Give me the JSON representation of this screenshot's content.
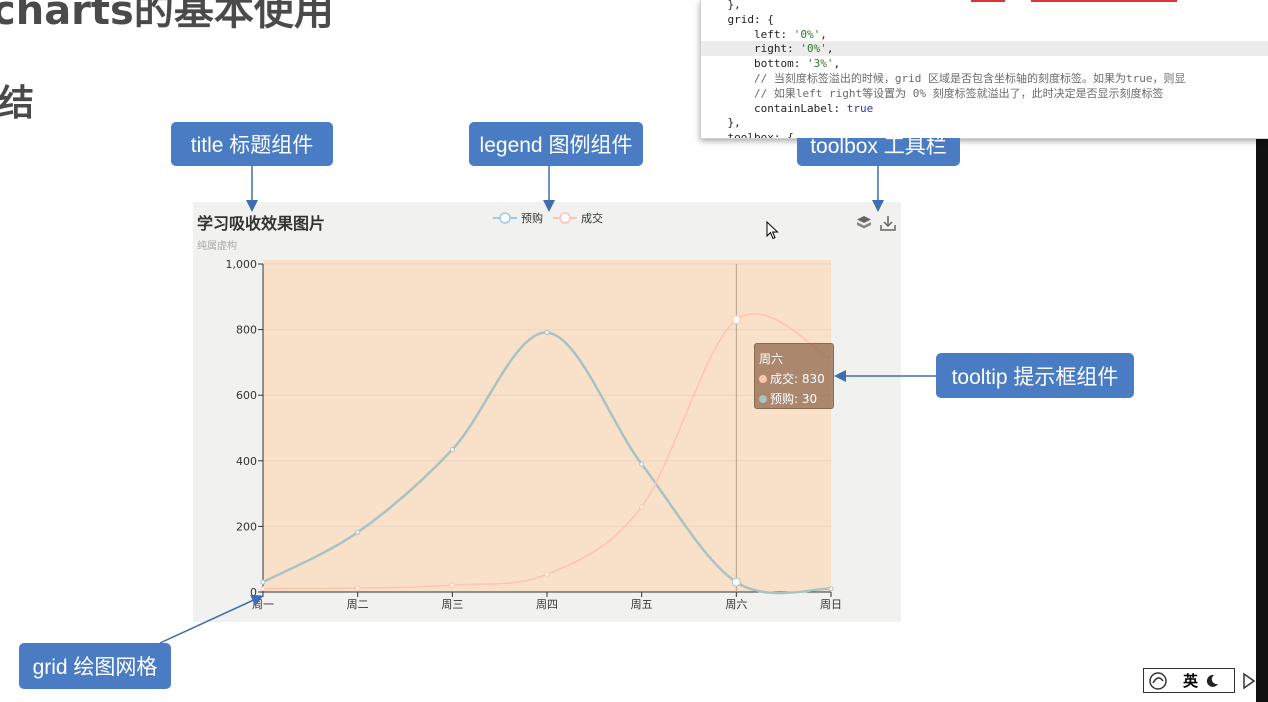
{
  "slide": {
    "title": "charts的基本使用",
    "section": "结"
  },
  "code": {
    "lines": [
      [
        {
          "t": "    },",
          "c": ""
        }
      ],
      [
        {
          "t": "    grid: {",
          "c": ""
        }
      ],
      [
        {
          "t": "        left: ",
          "c": ""
        },
        {
          "t": "'0%'",
          "c": "str"
        },
        {
          "t": ",",
          "c": ""
        }
      ],
      [
        {
          "t": "        right: ",
          "c": ""
        },
        {
          "t": "'0%'",
          "c": "str"
        },
        {
          "t": ",",
          "c": ""
        }
      ],
      [
        {
          "t": "        bottom: ",
          "c": ""
        },
        {
          "t": "'3%'",
          "c": "str"
        },
        {
          "t": ",",
          "c": ""
        }
      ],
      [
        {
          "t": "        // 当刻度标签溢出的时候，grid 区域是否包含坐标轴的刻度标签。如果为true，则显",
          "c": "cmt"
        }
      ],
      [
        {
          "t": "        // 如果left right等设置为 0% 刻度标签就溢出了，此时决定是否显示刻度标签",
          "c": "cmt"
        }
      ],
      [
        {
          "t": "        containLabel: ",
          "c": ""
        },
        {
          "t": "true",
          "c": "kw"
        }
      ],
      [
        {
          "t": "    },",
          "c": ""
        }
      ],
      [
        {
          "t": "    toolbox: {",
          "c": ""
        }
      ]
    ],
    "highlight_line": 3
  },
  "callouts": {
    "title": "title 标题组件",
    "legend": "legend 图例组件",
    "toolbox": "toolbox 工具栏",
    "tooltip": "tooltip 提示框组件",
    "grid": "grid 绘图网格"
  },
  "chart": {
    "title": "学习吸收效果图片",
    "subtitle": "纯属虚构",
    "legend": [
      "预购",
      "成交"
    ],
    "toolbox": [
      "magic-type-icon",
      "save-as-image-icon"
    ],
    "colors": {
      "series0": "#a9c3c4",
      "series1": "#ffc4b0",
      "area": "#f9e0c8",
      "axis": "#333333",
      "grid": "#e7d6c3"
    }
  },
  "chart_data": {
    "type": "line",
    "title": "学习吸收效果图片",
    "subtitle": "纯属虚构",
    "categories": [
      "周一",
      "周二",
      "周三",
      "周四",
      "周五",
      "周六",
      "周日"
    ],
    "series": [
      {
        "name": "预购",
        "values": [
          30,
          182,
          434,
          791,
          390,
          30,
          10
        ]
      },
      {
        "name": "成交",
        "values": [
          10,
          12,
          21,
          54,
          260,
          830,
          710
        ]
      }
    ],
    "yticks": [
      "0",
      "200",
      "400",
      "600",
      "800",
      "1,000"
    ],
    "ylim": [
      0,
      1000
    ],
    "smooth": true,
    "legend_position": "top-center"
  },
  "tooltip": {
    "title": "周六",
    "rows": [
      {
        "label": "成交: 830",
        "color": "#ffc4b0"
      },
      {
        "label": "预购: 30",
        "color": "#a9c3c4"
      }
    ]
  },
  "ime": {
    "label": "英"
  }
}
